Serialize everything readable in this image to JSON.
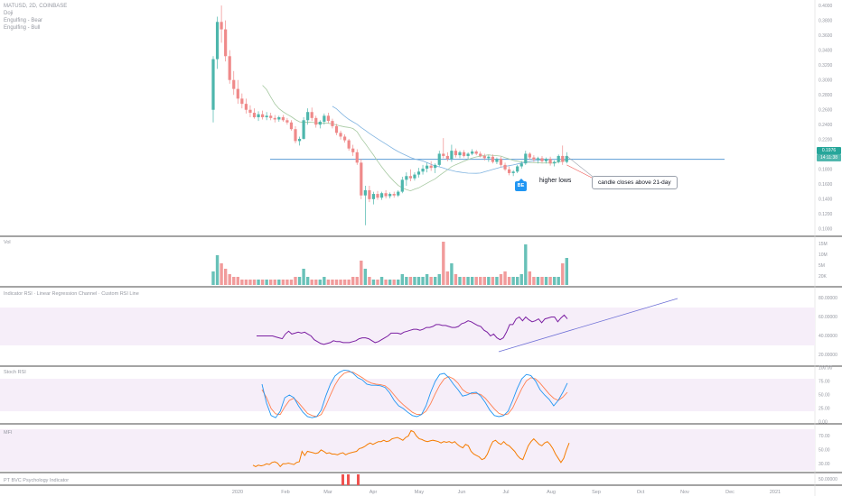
{
  "chart_data": {
    "type": "candlestick",
    "symbol": "MATIC/USD",
    "legend_title": "MATUSD, 2D, COINBASE",
    "legend_lines": [
      "Doji",
      "Engulfing - Bear",
      "Engulfing - Bull"
    ],
    "x_labels": [
      "2020",
      "Feb",
      "Mar",
      "Apr",
      "May",
      "Jun",
      "Jul",
      "Aug",
      "Sep",
      "Oct",
      "Nov",
      "Dec",
      "2021"
    ],
    "price_axis": [
      "0.4000",
      "0.3800",
      "0.3600",
      "0.3400",
      "0.3200",
      "0.3000",
      "0.2800",
      "0.2600",
      "0.2400",
      "0.2200",
      "0.2000",
      "0.1800",
      "0.1600",
      "0.1400",
      "0.1200",
      "0.1000"
    ],
    "price_range": [
      0.095,
      0.405
    ],
    "current_price": "0.1976",
    "countdown": "14:11:38",
    "horizontal_level": 0.1935,
    "ohlc": [
      [
        0.26,
        0.332,
        0.243,
        0.328
      ],
      [
        0.328,
        0.385,
        0.315,
        0.378
      ],
      [
        0.378,
        0.4,
        0.35,
        0.368
      ],
      [
        0.368,
        0.38,
        0.325,
        0.332
      ],
      [
        0.332,
        0.34,
        0.295,
        0.3
      ],
      [
        0.3,
        0.312,
        0.28,
        0.288
      ],
      [
        0.288,
        0.3,
        0.268,
        0.275
      ],
      [
        0.275,
        0.282,
        0.262,
        0.268
      ],
      [
        0.268,
        0.275,
        0.255,
        0.26
      ],
      [
        0.26,
        0.266,
        0.25,
        0.256
      ],
      [
        0.256,
        0.262,
        0.248,
        0.25
      ],
      [
        0.25,
        0.258,
        0.245,
        0.254
      ],
      [
        0.254,
        0.259,
        0.247,
        0.25
      ],
      [
        0.25,
        0.257,
        0.246,
        0.252
      ],
      [
        0.252,
        0.256,
        0.246,
        0.249
      ],
      [
        0.249,
        0.253,
        0.243,
        0.247
      ],
      [
        0.247,
        0.252,
        0.244,
        0.25
      ],
      [
        0.25,
        0.253,
        0.244,
        0.246
      ],
      [
        0.246,
        0.249,
        0.24,
        0.243
      ],
      [
        0.243,
        0.246,
        0.232,
        0.234
      ],
      [
        0.234,
        0.238,
        0.215,
        0.218
      ],
      [
        0.218,
        0.224,
        0.212,
        0.221
      ],
      [
        0.221,
        0.25,
        0.22,
        0.246
      ],
      [
        0.246,
        0.262,
        0.24,
        0.257
      ],
      [
        0.257,
        0.263,
        0.245,
        0.249
      ],
      [
        0.249,
        0.252,
        0.236,
        0.24
      ],
      [
        0.24,
        0.246,
        0.235,
        0.244
      ],
      [
        0.244,
        0.255,
        0.24,
        0.252
      ],
      [
        0.252,
        0.256,
        0.242,
        0.245
      ],
      [
        0.245,
        0.248,
        0.235,
        0.238
      ],
      [
        0.238,
        0.241,
        0.226,
        0.229
      ],
      [
        0.229,
        0.232,
        0.22,
        0.224
      ],
      [
        0.224,
        0.227,
        0.216,
        0.219
      ],
      [
        0.219,
        0.221,
        0.205,
        0.208
      ],
      [
        0.208,
        0.213,
        0.198,
        0.203
      ],
      [
        0.203,
        0.207,
        0.186,
        0.189
      ],
      [
        0.189,
        0.194,
        0.14,
        0.145
      ],
      [
        0.145,
        0.158,
        0.105,
        0.152
      ],
      [
        0.152,
        0.158,
        0.136,
        0.14
      ],
      [
        0.14,
        0.15,
        0.133,
        0.147
      ],
      [
        0.147,
        0.151,
        0.139,
        0.142
      ],
      [
        0.142,
        0.15,
        0.139,
        0.148
      ],
      [
        0.148,
        0.152,
        0.141,
        0.144
      ],
      [
        0.144,
        0.149,
        0.141,
        0.147
      ],
      [
        0.147,
        0.15,
        0.142,
        0.145
      ],
      [
        0.145,
        0.152,
        0.143,
        0.15
      ],
      [
        0.15,
        0.17,
        0.148,
        0.166
      ],
      [
        0.166,
        0.176,
        0.158,
        0.171
      ],
      [
        0.171,
        0.18,
        0.164,
        0.168
      ],
      [
        0.168,
        0.176,
        0.165,
        0.173
      ],
      [
        0.173,
        0.182,
        0.169,
        0.177
      ],
      [
        0.177,
        0.186,
        0.173,
        0.181
      ],
      [
        0.181,
        0.189,
        0.176,
        0.185
      ],
      [
        0.185,
        0.191,
        0.178,
        0.182
      ],
      [
        0.182,
        0.188,
        0.175,
        0.186
      ],
      [
        0.186,
        0.205,
        0.184,
        0.201
      ],
      [
        0.201,
        0.222,
        0.195,
        0.198
      ],
      [
        0.198,
        0.203,
        0.191,
        0.194
      ],
      [
        0.194,
        0.213,
        0.19,
        0.205
      ],
      [
        0.205,
        0.208,
        0.196,
        0.199
      ],
      [
        0.199,
        0.205,
        0.195,
        0.203
      ],
      [
        0.203,
        0.206,
        0.196,
        0.198
      ],
      [
        0.198,
        0.203,
        0.194,
        0.201
      ],
      [
        0.201,
        0.207,
        0.199,
        0.204
      ],
      [
        0.204,
        0.206,
        0.199,
        0.201
      ],
      [
        0.201,
        0.204,
        0.196,
        0.198
      ],
      [
        0.198,
        0.201,
        0.192,
        0.195
      ],
      [
        0.195,
        0.199,
        0.19,
        0.197
      ],
      [
        0.197,
        0.2,
        0.188,
        0.19
      ],
      [
        0.19,
        0.196,
        0.187,
        0.194
      ],
      [
        0.194,
        0.197,
        0.183,
        0.186
      ],
      [
        0.186,
        0.189,
        0.178,
        0.18
      ],
      [
        0.18,
        0.184,
        0.172,
        0.175
      ],
      [
        0.175,
        0.179,
        0.171,
        0.177
      ],
      [
        0.177,
        0.186,
        0.175,
        0.184
      ],
      [
        0.184,
        0.191,
        0.181,
        0.188
      ],
      [
        0.188,
        0.205,
        0.186,
        0.201
      ],
      [
        0.201,
        0.203,
        0.193,
        0.196
      ],
      [
        0.196,
        0.199,
        0.19,
        0.193
      ],
      [
        0.193,
        0.197,
        0.188,
        0.195
      ],
      [
        0.195,
        0.198,
        0.189,
        0.191
      ],
      [
        0.191,
        0.196,
        0.188,
        0.194
      ],
      [
        0.194,
        0.197,
        0.185,
        0.188
      ],
      [
        0.188,
        0.192,
        0.184,
        0.19
      ],
      [
        0.19,
        0.2,
        0.188,
        0.198
      ],
      [
        0.198,
        0.212,
        0.186,
        0.19
      ],
      [
        0.19,
        0.203,
        0.188,
        0.198
      ]
    ],
    "sma_level": 0.188,
    "volume_label": "Vol",
    "volume_axis": [
      "15M",
      "10M",
      "5M",
      "20K"
    ],
    "volume_max": 16,
    "volume": [
      5,
      11,
      8,
      6,
      4,
      3,
      3,
      2,
      2,
      2,
      2,
      2,
      2,
      2,
      2,
      2,
      2,
      2,
      2,
      2,
      3,
      3,
      6,
      3,
      2,
      2,
      2,
      3,
      2,
      2,
      2,
      2,
      2,
      2,
      3,
      3,
      9,
      6,
      3,
      2,
      2,
      3,
      2,
      2,
      2,
      2,
      4,
      3,
      3,
      3,
      3,
      3,
      4,
      3,
      3,
      4,
      16,
      5,
      8,
      4,
      3,
      3,
      3,
      3,
      3,
      3,
      3,
      3,
      3,
      3,
      4,
      5,
      3,
      3,
      3,
      4,
      15,
      5,
      3,
      3,
      3,
      3,
      3,
      3,
      3,
      8,
      10
    ],
    "rsi_label": "Indicator RSI · Linear Regression Channel · Custom RSI Line",
    "rsi_axis": [
      "80.00000",
      "60.00000",
      "40.00000",
      "20.00000"
    ],
    "rsi_range": [
      10,
      90
    ],
    "rsi": [
      40,
      40,
      40,
      40,
      40,
      40,
      39,
      38,
      37,
      42,
      45,
      42,
      43,
      44,
      43,
      44,
      42,
      40,
      36,
      34,
      32,
      31,
      32,
      33,
      35,
      34,
      34,
      33,
      33,
      33,
      34,
      35,
      37,
      38,
      38,
      37,
      35,
      33,
      34,
      36,
      38,
      40,
      43,
      43,
      43,
      42,
      44,
      45,
      46,
      47,
      47,
      46,
      47,
      49,
      49,
      50,
      52,
      52,
      51,
      51,
      50,
      49,
      49,
      50,
      53,
      54,
      56,
      55,
      53,
      51,
      50,
      46,
      44,
      40,
      42,
      38,
      36,
      38,
      44,
      52,
      52,
      58,
      60,
      56,
      60,
      57,
      55,
      56,
      58,
      54,
      58,
      59,
      60,
      60,
      55,
      59,
      62,
      58
    ],
    "rsi_trend_label": "rising RSI support",
    "stoch_label": "Stoch RSI",
    "stoch_axis": [
      "100.00",
      "75.00",
      "50.00",
      "25.00",
      "0.00"
    ],
    "stoch_k": [
      70,
      35,
      12,
      8,
      20,
      45,
      50,
      45,
      30,
      18,
      10,
      8,
      10,
      22,
      48,
      70,
      85,
      92,
      96,
      95,
      90,
      82,
      78,
      70,
      68,
      68,
      67,
      64,
      54,
      40,
      30,
      25,
      18,
      12,
      10,
      14,
      30,
      55,
      75,
      88,
      90,
      82,
      70,
      60,
      48,
      50,
      54,
      55,
      48,
      36,
      22,
      12,
      10,
      12,
      20,
      40,
      62,
      80,
      88,
      86,
      76,
      60,
      50,
      42,
      30,
      40,
      55,
      72
    ],
    "stoch_d": [
      60,
      45,
      25,
      15,
      14,
      28,
      40,
      44,
      36,
      26,
      16,
      12,
      10,
      14,
      30,
      50,
      68,
      82,
      90,
      93,
      92,
      87,
      82,
      76,
      72,
      70,
      69,
      67,
      60,
      50,
      40,
      32,
      25,
      18,
      14,
      14,
      20,
      34,
      52,
      68,
      80,
      84,
      80,
      72,
      60,
      54,
      52,
      53,
      51,
      44,
      34,
      24,
      16,
      13,
      15,
      26,
      44,
      62,
      76,
      82,
      80,
      72,
      62,
      52,
      44,
      40,
      46,
      55
    ],
    "mfi_label": "MFI",
    "mfi_axis": [
      "70.00",
      "50.00",
      "30.00"
    ],
    "mfi_range": [
      20,
      85
    ],
    "mfi": [
      28,
      26,
      28,
      27,
      28,
      30,
      29,
      32,
      33,
      31,
      26,
      30,
      30,
      31,
      30,
      29,
      32,
      33,
      48,
      42,
      48,
      47,
      46,
      45,
      46,
      50,
      48,
      45,
      46,
      44,
      44,
      43,
      45,
      46,
      43,
      45,
      46,
      47,
      48,
      52,
      53,
      55,
      58,
      60,
      58,
      60,
      62,
      62,
      64,
      62,
      63,
      66,
      67,
      68,
      66,
      64,
      68,
      70,
      78,
      76,
      70,
      66,
      65,
      63,
      62,
      63,
      64,
      63,
      62,
      60,
      62,
      61,
      62,
      60,
      62,
      58,
      55,
      53,
      58,
      56,
      48,
      44,
      42,
      40,
      36,
      38,
      44,
      54,
      62,
      64,
      60,
      58,
      62,
      58,
      56,
      52,
      48,
      42,
      38,
      36,
      46,
      56,
      62,
      66,
      62,
      58,
      56,
      60,
      62,
      58,
      52,
      44,
      38,
      32,
      38,
      50,
      60
    ],
    "bottom_label": "PT BVC Psychology Indicator",
    "bottom_axis": [
      "50.00000"
    ],
    "annotations": {
      "higher_lows": "higher lows",
      "callout": "candle closes above 21-day",
      "be_badge": "BE"
    }
  },
  "colors": {
    "up": "#4db6ac",
    "down": "#ef8a8a",
    "level": "#5b9bd5",
    "rsi": "#7b1fa2",
    "stoch_k": "#2196f3",
    "stoch_d": "#ff7f50",
    "mfi": "#f57c00",
    "band": "#f6eef9",
    "trend": "#6d6fd6"
  }
}
